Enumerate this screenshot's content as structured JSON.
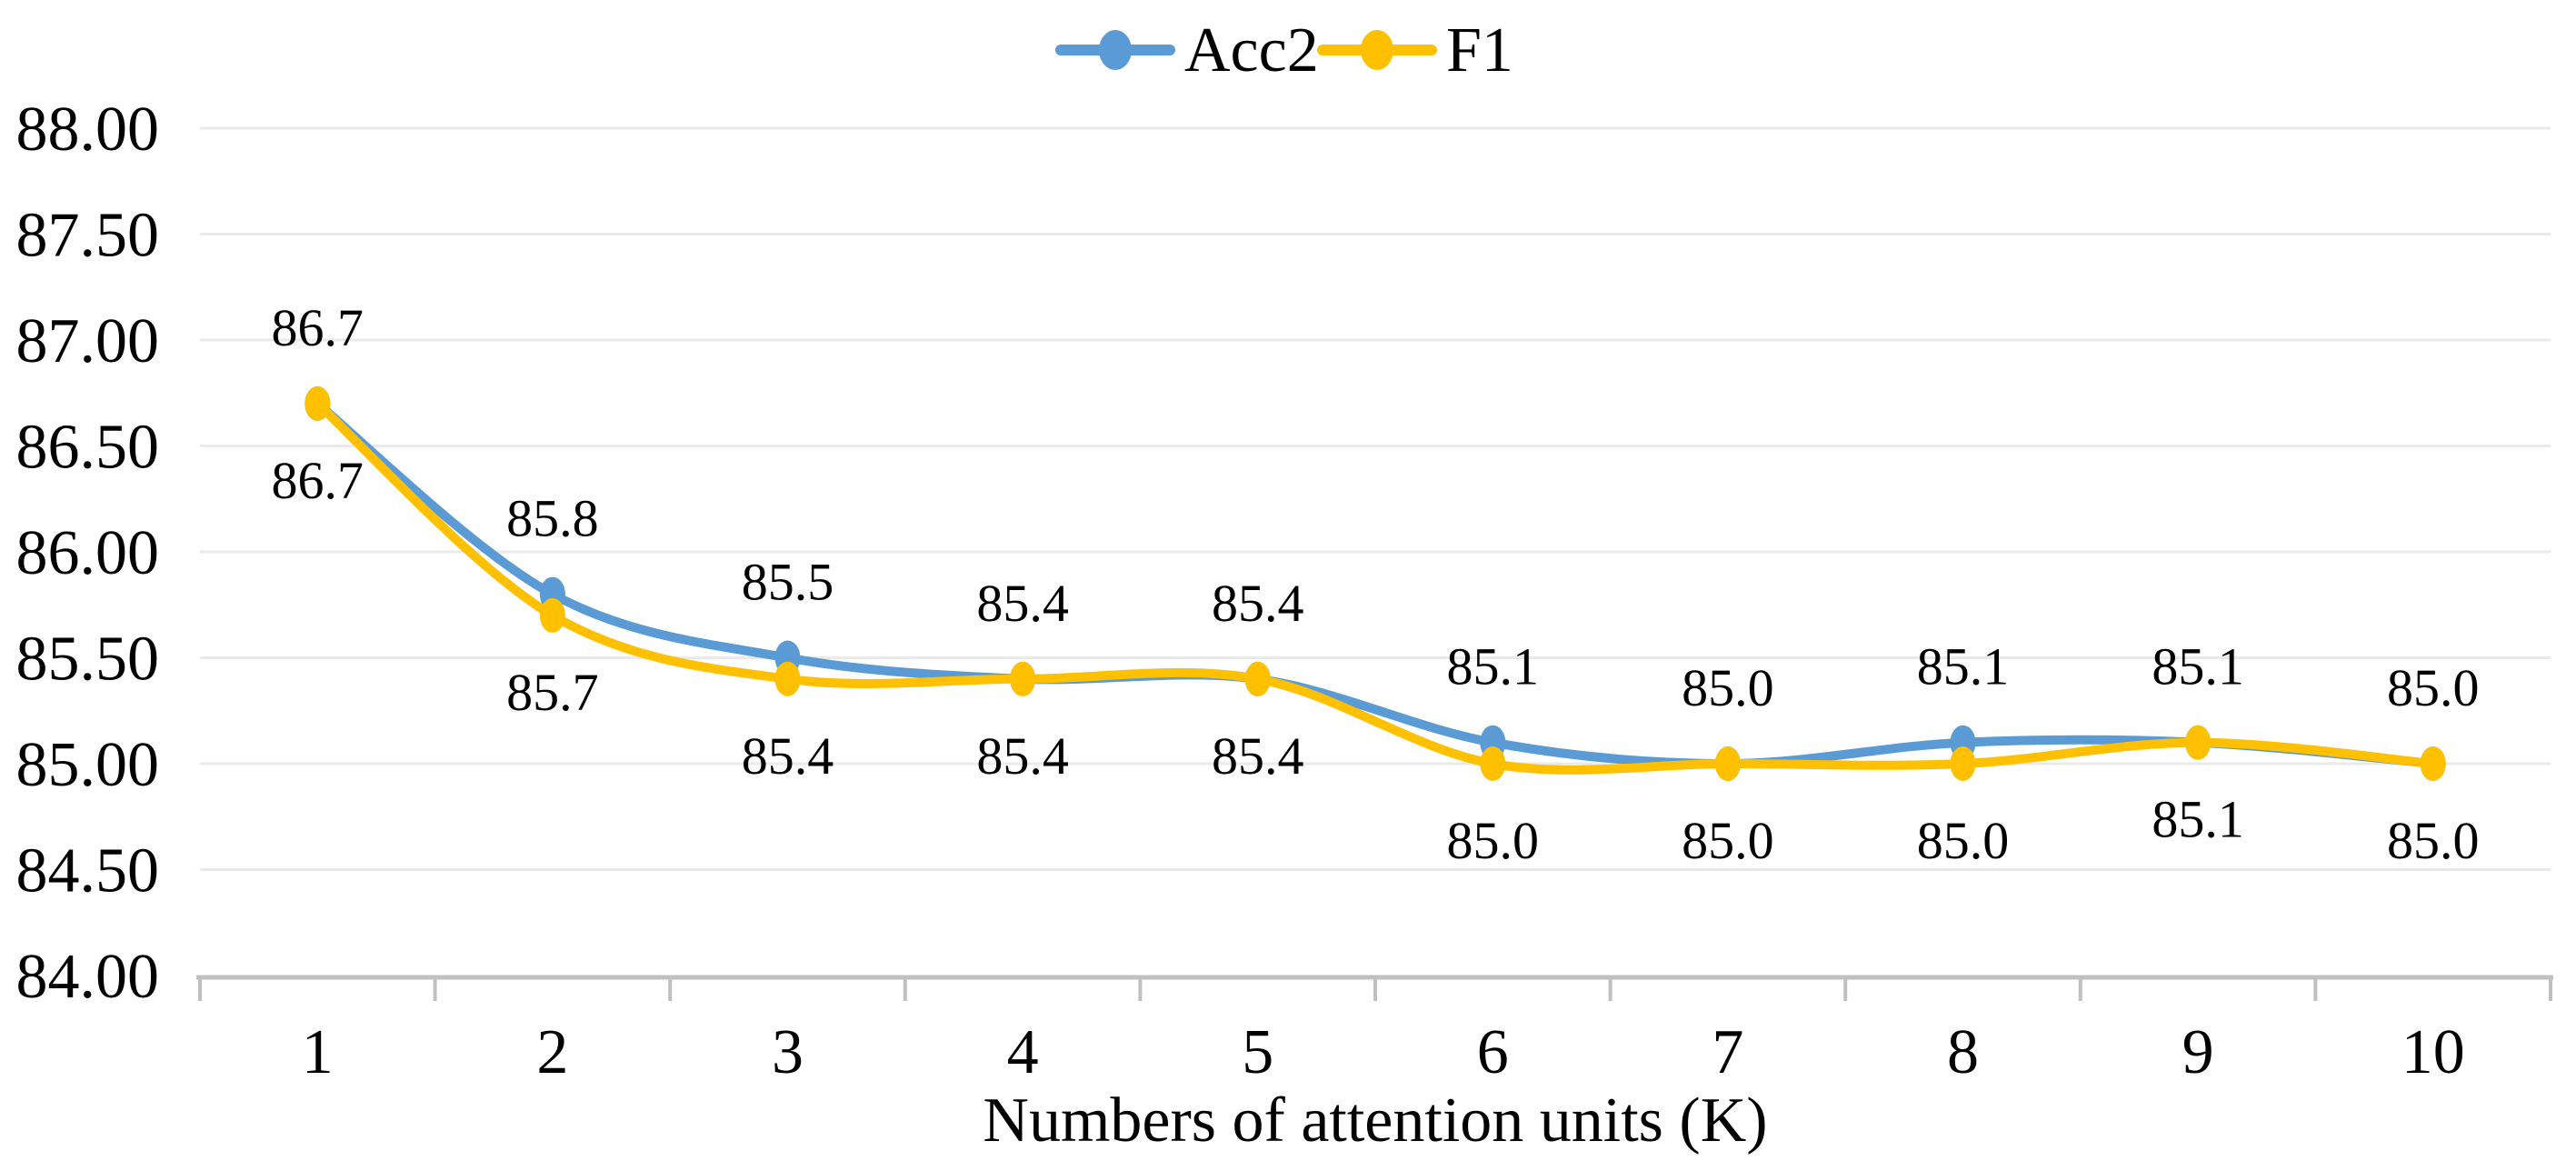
{
  "chart_data": {
    "type": "line",
    "title": "",
    "xlabel": "Numbers of attention units (K)",
    "ylabel": "",
    "x": [
      1,
      2,
      3,
      4,
      5,
      6,
      7,
      8,
      9,
      10
    ],
    "xtick_labels": [
      "1",
      "2",
      "3",
      "4",
      "5",
      "6",
      "7",
      "8",
      "9",
      "10"
    ],
    "ylim": [
      84.0,
      88.0
    ],
    "ytick_step": 0.5,
    "ytick_labels": [
      "84.00",
      "84.50",
      "85.00",
      "85.50",
      "86.00",
      "86.50",
      "87.00",
      "87.50",
      "88.00"
    ],
    "grid": true,
    "smooth_lines": true,
    "data_labels_shown": true,
    "legend_position": "top-center",
    "series": [
      {
        "name": "Acc2",
        "color": "#5B9BD5",
        "values": [
          86.7,
          85.8,
          85.5,
          85.4,
          85.4,
          85.1,
          85.0,
          85.1,
          85.1,
          85.0
        ],
        "data_labels": [
          "86.7",
          "85.8",
          "85.5",
          "85.4",
          "85.4",
          "85.1",
          "85.0",
          "85.1",
          "85.1",
          "85.0"
        ],
        "label_position": "above"
      },
      {
        "name": "F1",
        "color": "#FFC000",
        "values": [
          86.7,
          85.7,
          85.4,
          85.4,
          85.4,
          85.0,
          85.0,
          85.0,
          85.1,
          85.0
        ],
        "data_labels": [
          "86.7",
          "85.7",
          "85.4",
          "85.4",
          "85.4",
          "85.0",
          "85.0",
          "85.0",
          "85.1",
          "85.0"
        ],
        "label_position": "below"
      }
    ],
    "colors": {
      "gridline": "#EAEAEA",
      "axis": "#C0C0C0",
      "text": "#000000",
      "background": "#FFFFFF"
    }
  }
}
